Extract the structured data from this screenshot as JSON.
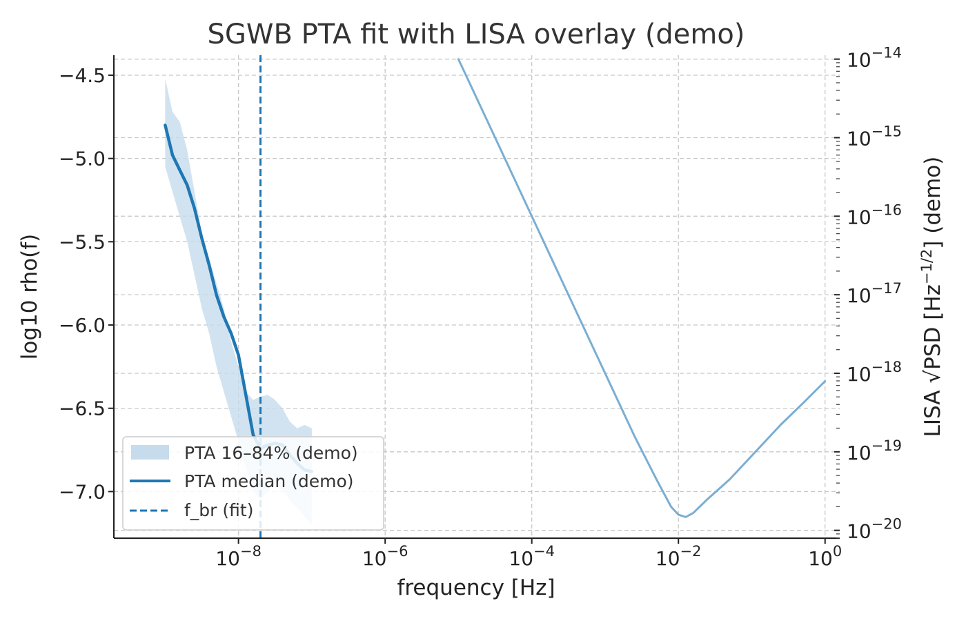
{
  "chart_data": {
    "type": "line",
    "title": "SGWB PTA fit with LISA overlay (demo)",
    "xlabel": "frequency [Hz]",
    "ylabel": "log10 rho(f)",
    "y2label": "LISA √PSD [Hz⁻¹ᐟ²] (demo)",
    "y2label_parts": {
      "pre": "LISA √PSD [Hz",
      "sup": "−1/2",
      "post": "] (demo)"
    },
    "x_scale": "log",
    "xlim_log10": [
      -9.7,
      0.2
    ],
    "ylim": [
      -7.28,
      -4.38
    ],
    "y2_scale": "log",
    "y2lim_log10": [
      -20.1,
      -13.95
    ],
    "x_tick_exponents": [
      "−8",
      "−6",
      "−4",
      "−2",
      "0"
    ],
    "x_tick_values_log10": [
      -8,
      -6,
      -4,
      -2,
      0
    ],
    "y_ticks": [
      -4.5,
      -5.0,
      -5.5,
      -6.0,
      -6.5,
      -7.0
    ],
    "y_tick_labels": [
      "−4.5",
      "−5.0",
      "−5.5",
      "−6.0",
      "−6.5",
      "−7.0"
    ],
    "y2_tick_values_log10": [
      -14,
      -15,
      -16,
      -17,
      -18,
      -19,
      -20
    ],
    "y2_tick_exponents": [
      "−14",
      "−15",
      "−16",
      "−17",
      "−18",
      "−19",
      "−20"
    ],
    "grid": true,
    "legend_position": "lower-left",
    "series": [
      {
        "name": "PTA 16–84% (demo)",
        "kind": "band",
        "color": "#c6dcec",
        "x_log10": [
          -9.0,
          -8.9,
          -8.8,
          -8.7,
          -8.6,
          -8.5,
          -8.4,
          -8.3,
          -8.2,
          -8.1,
          -8.0,
          -7.9,
          -7.8,
          -7.7,
          -7.6,
          -7.5,
          -7.4,
          -7.3,
          -7.2,
          -7.1,
          -7.0
        ],
        "lower": [
          -5.05,
          -5.2,
          -5.35,
          -5.5,
          -5.7,
          -5.9,
          -6.05,
          -6.25,
          -6.4,
          -6.55,
          -6.7,
          -6.85,
          -7.0,
          -7.05,
          -7.0,
          -6.95,
          -7.0,
          -7.05,
          -7.1,
          -7.15,
          -7.2
        ],
        "upper": [
          -4.52,
          -4.72,
          -4.78,
          -4.95,
          -5.2,
          -5.45,
          -5.6,
          -5.75,
          -5.9,
          -6.1,
          -6.25,
          -6.4,
          -6.45,
          -6.43,
          -6.42,
          -6.45,
          -6.5,
          -6.58,
          -6.62,
          -6.6,
          -6.62
        ]
      },
      {
        "name": "PTA median (demo)",
        "kind": "line",
        "color": "#1f77b4",
        "x_log10": [
          -9.0,
          -8.9,
          -8.8,
          -8.7,
          -8.6,
          -8.5,
          -8.4,
          -8.3,
          -8.2,
          -8.1,
          -8.0,
          -7.9,
          -7.8,
          -7.7,
          -7.6,
          -7.5,
          -7.4,
          -7.3,
          -7.2,
          -7.1,
          -7.0
        ],
        "y": [
          -4.8,
          -4.98,
          -5.07,
          -5.16,
          -5.3,
          -5.48,
          -5.64,
          -5.82,
          -5.95,
          -6.05,
          -6.18,
          -6.42,
          -6.66,
          -6.74,
          -6.72,
          -6.71,
          -6.72,
          -6.78,
          -6.83,
          -6.87,
          -6.88
        ]
      },
      {
        "name": "f_br (fit)",
        "kind": "vline",
        "color": "#1f77b4",
        "x_log10": -7.7
      },
      {
        "name": "LISA",
        "kind": "line",
        "axis": "right",
        "color": "#7aaed3",
        "x_log10": [
          -5.0,
          -4.5,
          -4.0,
          -3.5,
          -3.0,
          -2.6,
          -2.3,
          -2.1,
          -2.0,
          -1.9,
          -1.8,
          -1.6,
          -1.3,
          -1.0,
          -0.6,
          -0.3,
          0.0
        ],
        "y_log10": [
          -14.0,
          -15.0,
          -16.0,
          -17.0,
          -18.0,
          -18.8,
          -19.35,
          -19.7,
          -19.8,
          -19.83,
          -19.78,
          -19.6,
          -19.35,
          -19.05,
          -18.65,
          -18.38,
          -18.1
        ]
      }
    ]
  }
}
